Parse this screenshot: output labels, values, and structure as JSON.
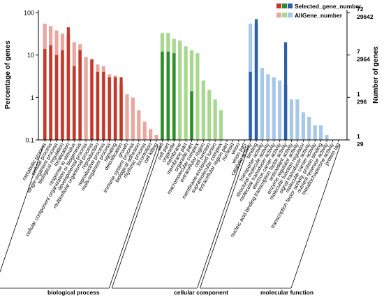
{
  "chart_data": {
    "type": "bar",
    "title": "",
    "ylabel": "Percentage of genes",
    "ylabel_right": "Number of genes",
    "y_scale": "log",
    "ylim": [
      0.1,
      100
    ],
    "y_ticks": [
      "0.1",
      "1",
      "10",
      "100"
    ],
    "right_ticks": [
      {
        "selected": "72",
        "all": "29642"
      },
      {
        "selected": "7",
        "all": "2964"
      },
      {
        "selected": "1",
        "all": "296"
      },
      {
        "selected": "1",
        "all": "29"
      }
    ],
    "legend": {
      "position": "top-right",
      "selected_label": "Selected_gene_number",
      "all_label": "AllGene_number"
    },
    "groups": [
      {
        "name": "biological process",
        "dark": "#c0392b",
        "light": "#e8a8a0"
      },
      {
        "name": "cellular component",
        "dark": "#2e8b2e",
        "light": "#a8d890"
      },
      {
        "name": "molecular function",
        "dark": "#2f5fa8",
        "light": "#a8c8e8"
      }
    ],
    "categories": [
      {
        "name": "metabolic process",
        "group": 0,
        "all": 55,
        "selected": 14
      },
      {
        "name": "cellular process",
        "group": 0,
        "all": 48,
        "selected": 17
      },
      {
        "name": "single-organism process",
        "group": 0,
        "all": 38,
        "selected": 10
      },
      {
        "name": "biological regulation",
        "group": 0,
        "all": 32,
        "selected": 13
      },
      {
        "name": "localization",
        "group": 0,
        "all": 30,
        "selected": 45
      },
      {
        "name": "response to stimulus",
        "group": 0,
        "all": 20,
        "selected": 5.5
      },
      {
        "name": "cellular component organization or biogenesis",
        "group": 0,
        "all": 18,
        "selected": 13
      },
      {
        "name": "developmental process",
        "group": 0,
        "all": 9,
        "selected": 0
      },
      {
        "name": "multicellular organismal process",
        "group": 0,
        "all": 8,
        "selected": 8
      },
      {
        "name": "reproduction",
        "group": 0,
        "all": 6,
        "selected": 4
      },
      {
        "name": "reproductive process",
        "group": 0,
        "all": 5.5,
        "selected": 4
      },
      {
        "name": "multi-organism process",
        "group": 0,
        "all": 3.5,
        "selected": 3
      },
      {
        "name": "signaling",
        "group": 0,
        "all": 3.3,
        "selected": 3
      },
      {
        "name": "detoxification",
        "group": 0,
        "all": 1.9,
        "selected": 3
      },
      {
        "name": "growth",
        "group": 0,
        "all": 1.2,
        "selected": 0
      },
      {
        "name": "immune system process",
        "group": 0,
        "all": 1.0,
        "selected": 0
      },
      {
        "name": "biological adhesion",
        "group": 0,
        "all": 0.5,
        "selected": 0
      },
      {
        "name": "rhythmic process",
        "group": 0,
        "all": 0.27,
        "selected": 0
      },
      {
        "name": "locomotion",
        "group": 0,
        "all": 0.18,
        "selected": 0
      },
      {
        "name": "cell killing",
        "group": 0,
        "all": 0.13,
        "selected": 0
      },
      {
        "name": "cell",
        "group": 1,
        "all": 33,
        "selected": 12
      },
      {
        "name": "cell part",
        "group": 1,
        "all": 33,
        "selected": 12
      },
      {
        "name": "organelle",
        "group": 1,
        "all": 24,
        "selected": 11
      },
      {
        "name": "membrane",
        "group": 1,
        "all": 22,
        "selected": 0
      },
      {
        "name": "membrane part",
        "group": 1,
        "all": 16,
        "selected": 0
      },
      {
        "name": "organelle part",
        "group": 1,
        "all": 13,
        "selected": 1.4
      },
      {
        "name": "macromolecular complex",
        "group": 1,
        "all": 11,
        "selected": 0
      },
      {
        "name": "extracellular region",
        "group": 1,
        "all": 2.5,
        "selected": 0
      },
      {
        "name": "cell junction",
        "group": 1,
        "all": 1.5,
        "selected": 0
      },
      {
        "name": "membrane-enclosed lumen",
        "group": 1,
        "all": 0.9,
        "selected": 0
      },
      {
        "name": "supramolecular complex",
        "group": 1,
        "all": 0.5,
        "selected": 0
      },
      {
        "name": "extracellular region part",
        "group": 1,
        "all": 0,
        "selected": 0
      },
      {
        "name": "nucleoid",
        "group": 1,
        "all": 0,
        "selected": 0
      },
      {
        "name": "virion",
        "group": 1,
        "all": 0,
        "selected": 0
      },
      {
        "name": "virion part",
        "group": 1,
        "all": 0,
        "selected": 0
      },
      {
        "name": "catalytic activity",
        "group": 2,
        "all": 55,
        "selected": 4
      },
      {
        "name": "binding",
        "group": 2,
        "all": 55,
        "selected": 70
      },
      {
        "name": "transporter activity",
        "group": 2,
        "all": 5,
        "selected": 0
      },
      {
        "name": "structural molecule activity",
        "group": 2,
        "all": 3.5,
        "selected": 0
      },
      {
        "name": "molecular transducer activity",
        "group": 2,
        "all": 3,
        "selected": 0
      },
      {
        "name": "electron carrier activity",
        "group": 2,
        "all": 2.5,
        "selected": 0
      },
      {
        "name": "nucleic acid binding transcription factor activity",
        "group": 2,
        "all": 2.0,
        "selected": 20
      },
      {
        "name": "antioxidant activity",
        "group": 2,
        "all": 0.9,
        "selected": 0
      },
      {
        "name": "enzyme regulator activity",
        "group": 2,
        "all": 0.9,
        "selected": 0
      },
      {
        "name": "molecular function regulator",
        "group": 2,
        "all": 0.45,
        "selected": 0
      },
      {
        "name": "signal transducer activity",
        "group": 2,
        "all": 0.35,
        "selected": 0
      },
      {
        "name": "molecular carrier activity",
        "group": 2,
        "all": 0.22,
        "selected": 0
      },
      {
        "name": "transcription factor activity, protein binding",
        "group": 2,
        "all": 0.22,
        "selected": 0
      },
      {
        "name": "nutrient reservoir activity",
        "group": 2,
        "all": 0.13,
        "selected": 0
      },
      {
        "name": "metallochaperone activity",
        "group": 2,
        "all": 0,
        "selected": 0
      },
      {
        "name": "protein tag",
        "group": 2,
        "all": 0,
        "selected": 0
      }
    ]
  }
}
